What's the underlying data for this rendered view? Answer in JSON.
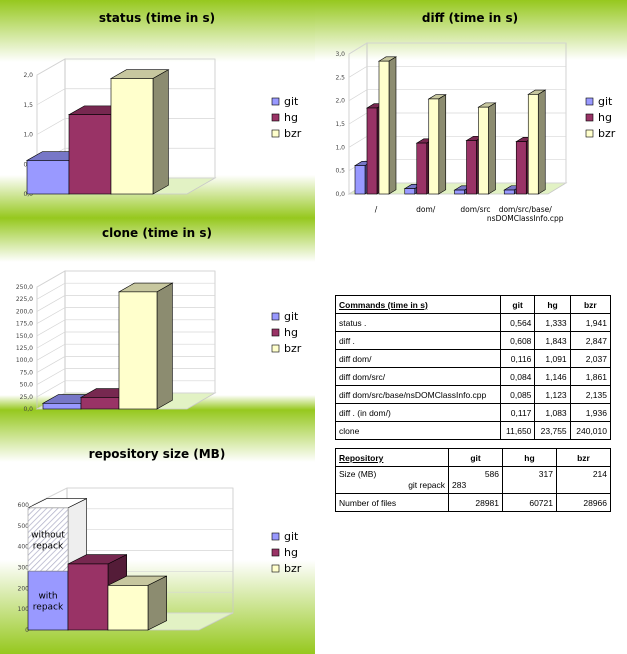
{
  "colors": {
    "git": "#9999ff",
    "hg": "#993366",
    "bzr": "#ffffcc"
  },
  "chart_data": [
    {
      "id": "status",
      "type": "bar",
      "title": "status (time in s)",
      "categories": [
        ""
      ],
      "series": [
        {
          "name": "git",
          "values": [
            0.564
          ]
        },
        {
          "name": "hg",
          "values": [
            1.333
          ]
        },
        {
          "name": "bzr",
          "values": [
            1.941
          ]
        }
      ],
      "ylim": [
        0,
        2
      ],
      "yticks": [
        "0,0",
        "0,5",
        "1,0",
        "1,5",
        "2,0"
      ],
      "legend": "right",
      "grid": true
    },
    {
      "id": "diff",
      "type": "bar",
      "title": "diff (time in s)",
      "categories": [
        "/",
        "dom/",
        "dom/src",
        "dom/src/base/\nnsDOMClassInfo.cpp"
      ],
      "series": [
        {
          "name": "git",
          "values": [
            0.608,
            0.116,
            0.084,
            0.085
          ]
        },
        {
          "name": "hg",
          "values": [
            1.843,
            1.091,
            1.146,
            1.123
          ]
        },
        {
          "name": "bzr",
          "values": [
            2.847,
            2.037,
            1.861,
            2.135
          ]
        }
      ],
      "ylim": [
        0,
        3
      ],
      "yticks": [
        "0,0",
        "0,5",
        "1,0",
        "1,5",
        "2,0",
        "2,5",
        "3,0"
      ],
      "legend": "right",
      "grid": true
    },
    {
      "id": "clone",
      "type": "bar",
      "title": "clone (time in s)",
      "categories": [
        ""
      ],
      "series": [
        {
          "name": "git",
          "values": [
            11.65
          ]
        },
        {
          "name": "hg",
          "values": [
            23.755
          ]
        },
        {
          "name": "bzr",
          "values": [
            240.01
          ]
        }
      ],
      "ylim": [
        0,
        250
      ],
      "yticks": [
        "0,0",
        "25,0",
        "50,0",
        "75,0",
        "100,0",
        "125,0",
        "150,0",
        "175,0",
        "200,0",
        "225,0",
        "250,0"
      ],
      "legend": "right",
      "grid": true
    },
    {
      "id": "repo",
      "type": "bar",
      "title": "repository size (MB)",
      "categories": [
        ""
      ],
      "series": [
        {
          "name": "git",
          "values": [
            283
          ],
          "stacked_extra": 303
        },
        {
          "name": "hg",
          "values": [
            317
          ]
        },
        {
          "name": "bzr",
          "values": [
            214
          ]
        }
      ],
      "annotations": [
        "with\nrepack",
        "without\nrepack"
      ],
      "ylim": [
        0,
        600
      ],
      "yticks": [
        "0",
        "100",
        "200",
        "300",
        "400",
        "500",
        "600"
      ],
      "legend": "right",
      "grid": true
    }
  ],
  "commands_table": {
    "headers": [
      "Commands (time in s)",
      "git",
      "hg",
      "bzr"
    ],
    "rows": [
      [
        "status .",
        "0,564",
        "1,333",
        "1,941"
      ],
      [
        "diff .",
        "0,608",
        "1,843",
        "2,847"
      ],
      [
        "diff dom/",
        "0,116",
        "1,091",
        "2,037"
      ],
      [
        "diff dom/src/",
        "0,084",
        "1,146",
        "1,861"
      ],
      [
        "diff dom/src/base/nsDOMClassInfo.cpp",
        "0,085",
        "1,123",
        "2,135"
      ],
      [
        "diff . (in dom/)",
        "0,117",
        "1,083",
        "1,936"
      ],
      [
        "clone",
        "11,650",
        "23,755",
        "240,010"
      ]
    ]
  },
  "repo_table": {
    "headers": [
      "Repository",
      "git",
      "hg",
      "bzr"
    ],
    "size_label": "Size (MB)",
    "size_git": "586",
    "size_hg": "317",
    "size_bzr": "214",
    "repack_label": "git repack",
    "repack_git": "283",
    "files_label": "Number of files",
    "files_git": "28981",
    "files_hg": "60721",
    "files_bzr": "28966"
  }
}
